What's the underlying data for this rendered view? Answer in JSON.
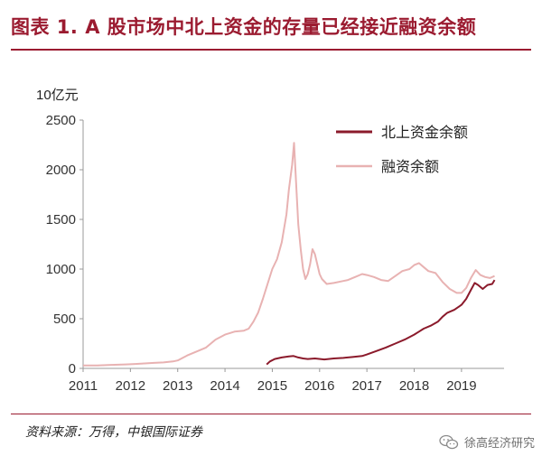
{
  "header": {
    "title": "图表 1. A 股市场中北上资金的存量已经接近融资余额"
  },
  "footer": {
    "source": "资料来源：万得，中银国际证券",
    "watermark": "徐高经济研究",
    "watermark_icon": "wechat-icon"
  },
  "chart_data": {
    "type": "line",
    "unit_label": "10亿元",
    "ylim": [
      0,
      2500
    ],
    "yticks": [
      0,
      500,
      1000,
      1500,
      2000,
      2500
    ],
    "xlim": [
      2011,
      2019.9
    ],
    "xticks": [
      "2011",
      "2012",
      "2013",
      "2014",
      "2015",
      "2016",
      "2017",
      "2018",
      "2019"
    ],
    "grid": false,
    "legend_position": "top-right",
    "series": [
      {
        "name": "北上资金余额",
        "color": "#8b1a2b",
        "points": [
          [
            2014.88,
            40
          ],
          [
            2014.95,
            70
          ],
          [
            2015.05,
            95
          ],
          [
            2015.2,
            110
          ],
          [
            2015.35,
            120
          ],
          [
            2015.45,
            125
          ],
          [
            2015.55,
            110
          ],
          [
            2015.65,
            100
          ],
          [
            2015.75,
            95
          ],
          [
            2015.9,
            100
          ],
          [
            2016.1,
            90
          ],
          [
            2016.3,
            100
          ],
          [
            2016.5,
            105
          ],
          [
            2016.7,
            115
          ],
          [
            2016.9,
            125
          ],
          [
            2017.0,
            140
          ],
          [
            2017.2,
            175
          ],
          [
            2017.4,
            210
          ],
          [
            2017.6,
            250
          ],
          [
            2017.8,
            290
          ],
          [
            2018.0,
            340
          ],
          [
            2018.1,
            370
          ],
          [
            2018.2,
            400
          ],
          [
            2018.35,
            430
          ],
          [
            2018.5,
            470
          ],
          [
            2018.6,
            520
          ],
          [
            2018.7,
            560
          ],
          [
            2018.85,
            590
          ],
          [
            2019.0,
            640
          ],
          [
            2019.1,
            700
          ],
          [
            2019.2,
            790
          ],
          [
            2019.28,
            860
          ],
          [
            2019.35,
            840
          ],
          [
            2019.45,
            800
          ],
          [
            2019.55,
            840
          ],
          [
            2019.65,
            850
          ],
          [
            2019.7,
            890
          ]
        ]
      },
      {
        "name": "融资余额",
        "color": "#e8b2b2",
        "points": [
          [
            2011.0,
            30
          ],
          [
            2011.3,
            30
          ],
          [
            2011.6,
            35
          ],
          [
            2011.9,
            40
          ],
          [
            2012.1,
            45
          ],
          [
            2012.3,
            50
          ],
          [
            2012.5,
            55
          ],
          [
            2012.7,
            60
          ],
          [
            2012.9,
            70
          ],
          [
            2013.0,
            80
          ],
          [
            2013.2,
            130
          ],
          [
            2013.4,
            170
          ],
          [
            2013.6,
            210
          ],
          [
            2013.8,
            290
          ],
          [
            2014.0,
            340
          ],
          [
            2014.2,
            370
          ],
          [
            2014.4,
            380
          ],
          [
            2014.5,
            400
          ],
          [
            2014.6,
            470
          ],
          [
            2014.7,
            560
          ],
          [
            2014.8,
            700
          ],
          [
            2014.9,
            850
          ],
          [
            2015.0,
            1000
          ],
          [
            2015.1,
            1100
          ],
          [
            2015.2,
            1270
          ],
          [
            2015.3,
            1550
          ],
          [
            2015.35,
            1800
          ],
          [
            2015.42,
            2050
          ],
          [
            2015.46,
            2270
          ],
          [
            2015.5,
            1900
          ],
          [
            2015.55,
            1450
          ],
          [
            2015.6,
            1200
          ],
          [
            2015.65,
            1000
          ],
          [
            2015.7,
            900
          ],
          [
            2015.75,
            950
          ],
          [
            2015.8,
            1050
          ],
          [
            2015.85,
            1200
          ],
          [
            2015.9,
            1150
          ],
          [
            2016.0,
            950
          ],
          [
            2016.05,
            900
          ],
          [
            2016.15,
            850
          ],
          [
            2016.3,
            860
          ],
          [
            2016.5,
            880
          ],
          [
            2016.6,
            890
          ],
          [
            2016.75,
            920
          ],
          [
            2016.9,
            950
          ],
          [
            2017.0,
            940
          ],
          [
            2017.15,
            920
          ],
          [
            2017.3,
            890
          ],
          [
            2017.45,
            880
          ],
          [
            2017.6,
            930
          ],
          [
            2017.75,
            980
          ],
          [
            2017.9,
            1000
          ],
          [
            2018.0,
            1040
          ],
          [
            2018.1,
            1060
          ],
          [
            2018.2,
            1020
          ],
          [
            2018.3,
            980
          ],
          [
            2018.45,
            960
          ],
          [
            2018.6,
            870
          ],
          [
            2018.75,
            800
          ],
          [
            2018.9,
            760
          ],
          [
            2019.0,
            760
          ],
          [
            2019.1,
            810
          ],
          [
            2019.2,
            910
          ],
          [
            2019.3,
            990
          ],
          [
            2019.4,
            940
          ],
          [
            2019.5,
            920
          ],
          [
            2019.6,
            910
          ],
          [
            2019.7,
            930
          ]
        ]
      }
    ]
  }
}
